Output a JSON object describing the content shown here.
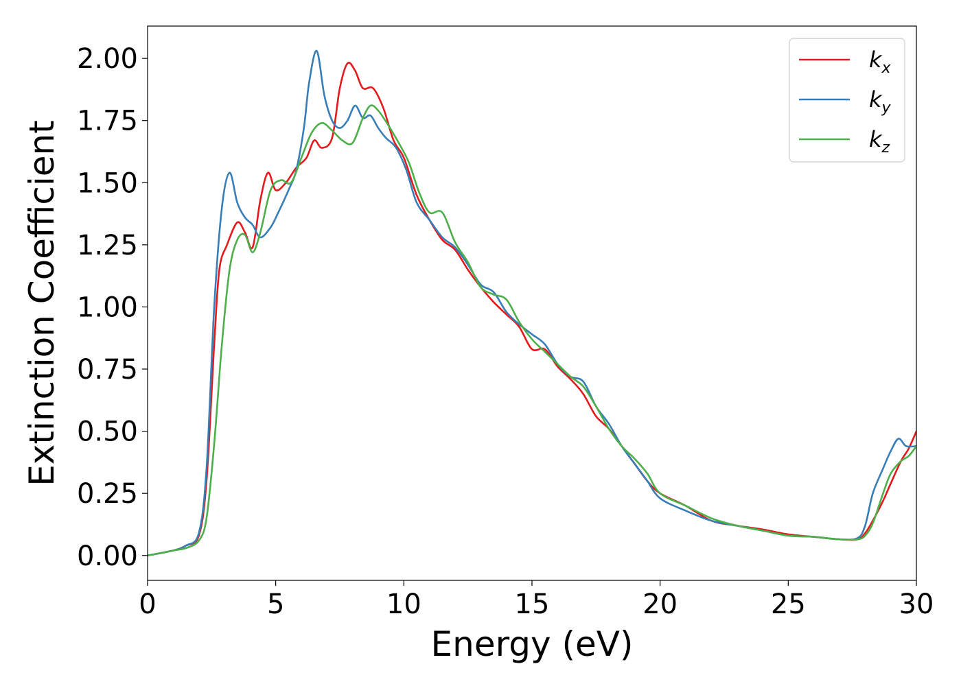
{
  "chart_data": {
    "type": "line",
    "title": "",
    "xlabel": "Energy (eV)",
    "ylabel": "Extinction Coefficient",
    "xlim": [
      0,
      30
    ],
    "ylim": [
      -0.1,
      2.13
    ],
    "xticks": [
      0,
      5,
      10,
      15,
      20,
      25,
      30
    ],
    "xtick_labels": [
      "0",
      "5",
      "10",
      "15",
      "20",
      "25",
      "30"
    ],
    "yticks": [
      0.0,
      0.25,
      0.5,
      0.75,
      1.0,
      1.25,
      1.5,
      1.75,
      2.0
    ],
    "ytick_labels": [
      "0.00",
      "0.25",
      "0.50",
      "0.75",
      "1.00",
      "1.25",
      "1.50",
      "1.75",
      "2.00"
    ],
    "grid": false,
    "legend_position": "top-right",
    "series": [
      {
        "name": "k_x",
        "label_main": "k",
        "label_sub": "x",
        "color": "#e41a1c",
        "x": [
          0,
          1,
          1.5,
          2,
          2.3,
          2.6,
          2.8,
          3.1,
          3.5,
          3.8,
          4.1,
          4.4,
          4.7,
          5.0,
          5.4,
          5.8,
          6.2,
          6.5,
          6.8,
          7.2,
          7.5,
          7.8,
          8.1,
          8.4,
          8.8,
          9.2,
          9.6,
          10.0,
          10.5,
          11.0,
          11.5,
          12.0,
          12.5,
          13.0,
          13.5,
          14.0,
          14.5,
          15.0,
          15.5,
          16.0,
          16.5,
          17.0,
          17.5,
          18.0,
          18.5,
          19.0,
          19.5,
          20.0,
          21.0,
          22.0,
          23.0,
          24.0,
          25.0,
          26.0,
          27.0,
          27.7,
          28.0,
          28.3,
          28.7,
          29.0,
          29.4,
          29.7,
          30.0
        ],
        "y": [
          0.0,
          0.02,
          0.04,
          0.08,
          0.3,
          0.85,
          1.15,
          1.25,
          1.34,
          1.3,
          1.24,
          1.43,
          1.54,
          1.47,
          1.5,
          1.56,
          1.6,
          1.67,
          1.64,
          1.68,
          1.88,
          1.98,
          1.95,
          1.88,
          1.88,
          1.8,
          1.67,
          1.6,
          1.45,
          1.35,
          1.27,
          1.23,
          1.15,
          1.08,
          1.02,
          0.97,
          0.92,
          0.83,
          0.83,
          0.76,
          0.71,
          0.65,
          0.56,
          0.51,
          0.44,
          0.37,
          0.3,
          0.25,
          0.2,
          0.14,
          0.12,
          0.105,
          0.085,
          0.075,
          0.065,
          0.065,
          0.09,
          0.14,
          0.22,
          0.29,
          0.38,
          0.43,
          0.5
        ]
      },
      {
        "name": "k_y",
        "label_main": "k",
        "label_sub": "y",
        "color": "#377eb8",
        "x": [
          0,
          1,
          1.5,
          2,
          2.3,
          2.6,
          2.9,
          3.2,
          3.5,
          3.8,
          4.1,
          4.4,
          4.8,
          5.1,
          5.5,
          5.8,
          6.1,
          6.3,
          6.6,
          6.9,
          7.2,
          7.5,
          7.8,
          8.1,
          8.4,
          8.7,
          9.0,
          9.3,
          9.7,
          10.1,
          10.5,
          11.0,
          11.5,
          12.0,
          12.5,
          13.0,
          13.5,
          14.0,
          14.5,
          15.0,
          15.5,
          16.0,
          16.5,
          17.0,
          17.5,
          18.0,
          18.5,
          19.0,
          19.5,
          20.0,
          21.0,
          22.0,
          23.0,
          24.0,
          25.0,
          26.0,
          27.0,
          27.7,
          28.0,
          28.3,
          28.7,
          29.0,
          29.3,
          29.6,
          30.0
        ],
        "y": [
          0.0,
          0.02,
          0.04,
          0.09,
          0.35,
          1.0,
          1.4,
          1.54,
          1.42,
          1.36,
          1.33,
          1.28,
          1.32,
          1.38,
          1.47,
          1.55,
          1.72,
          1.9,
          2.03,
          1.85,
          1.75,
          1.72,
          1.75,
          1.81,
          1.76,
          1.77,
          1.72,
          1.68,
          1.64,
          1.55,
          1.42,
          1.35,
          1.28,
          1.24,
          1.17,
          1.09,
          1.06,
          0.98,
          0.93,
          0.89,
          0.85,
          0.77,
          0.72,
          0.7,
          0.6,
          0.53,
          0.44,
          0.37,
          0.3,
          0.23,
          0.18,
          0.14,
          0.12,
          0.1,
          0.08,
          0.075,
          0.065,
          0.07,
          0.12,
          0.25,
          0.35,
          0.42,
          0.47,
          0.44,
          0.44
        ]
      },
      {
        "name": "k_z",
        "label_main": "k",
        "label_sub": "z",
        "color": "#4daf4a",
        "x": [
          0,
          1,
          1.5,
          2,
          2.3,
          2.6,
          2.9,
          3.2,
          3.5,
          3.8,
          4.1,
          4.4,
          4.8,
          5.2,
          5.6,
          6.0,
          6.4,
          6.8,
          7.2,
          7.6,
          8.0,
          8.4,
          8.7,
          9.0,
          9.4,
          9.8,
          10.2,
          10.6,
          11.0,
          11.5,
          12.0,
          12.5,
          13.0,
          13.5,
          14.0,
          14.5,
          15.0,
          15.5,
          16.0,
          16.5,
          17.0,
          17.5,
          18.0,
          18.5,
          19.0,
          19.5,
          20.0,
          21.0,
          22.0,
          23.0,
          24.0,
          25.0,
          26.0,
          27.0,
          27.7,
          28.0,
          28.3,
          28.7,
          29.0,
          29.4,
          29.7,
          30.0
        ],
        "y": [
          0.0,
          0.02,
          0.03,
          0.06,
          0.15,
          0.45,
          0.85,
          1.15,
          1.27,
          1.29,
          1.22,
          1.3,
          1.47,
          1.51,
          1.5,
          1.6,
          1.7,
          1.74,
          1.71,
          1.67,
          1.66,
          1.76,
          1.81,
          1.79,
          1.73,
          1.66,
          1.58,
          1.46,
          1.38,
          1.38,
          1.26,
          1.18,
          1.08,
          1.05,
          1.03,
          0.94,
          0.87,
          0.82,
          0.77,
          0.72,
          0.68,
          0.6,
          0.51,
          0.44,
          0.39,
          0.33,
          0.25,
          0.2,
          0.15,
          0.12,
          0.1,
          0.08,
          0.075,
          0.065,
          0.065,
          0.08,
          0.13,
          0.25,
          0.33,
          0.38,
          0.4,
          0.44
        ]
      }
    ]
  }
}
